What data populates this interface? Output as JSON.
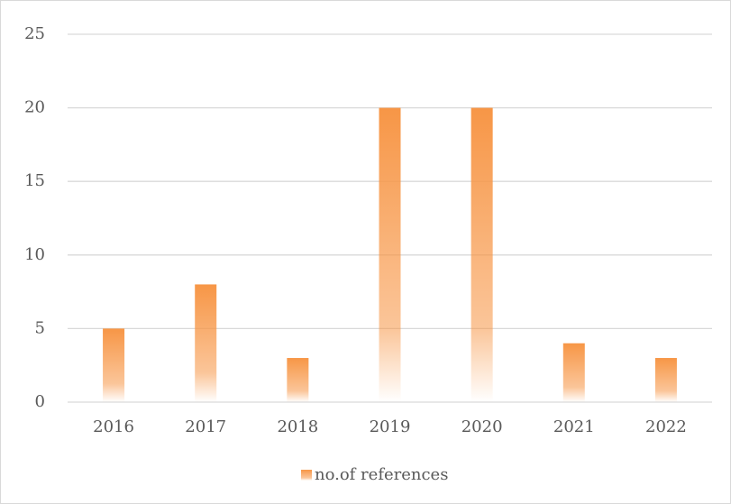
{
  "chart_data": {
    "type": "bar",
    "categories": [
      "2016",
      "2017",
      "2018",
      "2019",
      "2020",
      "2021",
      "2022"
    ],
    "series": [
      {
        "name": "no.of references",
        "color": "#f79646",
        "values": [
          5,
          8,
          3,
          20,
          20,
          4,
          3
        ]
      }
    ],
    "ylim": [
      0,
      25
    ],
    "yticks": [
      0,
      5,
      10,
      15,
      20,
      25
    ],
    "grid": true,
    "legend": "bottom"
  }
}
